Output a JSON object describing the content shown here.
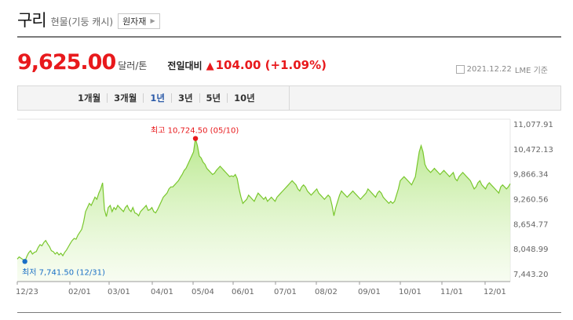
{
  "header": {
    "title": "구리",
    "subtitle": "현물(기둥 캐시)",
    "badge": "원자재"
  },
  "quote": {
    "price": "9,625.00",
    "unit": "달러/톤",
    "compare_label": "전일대비",
    "change": "104.00 (+1.09%)",
    "date": "2021.12.22",
    "source": "LME 기준"
  },
  "ranges": [
    "1개월",
    "3개월",
    "1년",
    "3년",
    "5년",
    "10년"
  ],
  "active_range": "1년",
  "colors": {
    "accent": "#e8191c",
    "active": "#2b5aa8",
    "line": "#79c72d",
    "high": "#e8191c",
    "low": "#1a6fc6"
  },
  "chart_data": {
    "type": "area",
    "x_tick_labels": [
      "12/23",
      "02/01",
      "03/01",
      "04/01",
      "05/04",
      "06/01",
      "07/01",
      "08/02",
      "09/01",
      "10/01",
      "11/01",
      "12/01"
    ],
    "y_tick_labels": [
      "11,077.91",
      "10,472.13",
      "9,866.34",
      "9,260.56",
      "8,654.77",
      "8,048.99",
      "7,443.20"
    ],
    "ylim": [
      7443.2,
      11077.91
    ],
    "high": {
      "label": "최고",
      "value": "10,724.50",
      "date": "(05/10)",
      "index": 94
    },
    "low": {
      "label": "최저",
      "value": "7,741.50",
      "date": "(12/31)",
      "index": 4
    },
    "values": [
      7800,
      7850,
      7820,
      7790,
      7741.5,
      7860,
      7950,
      8000,
      7920,
      7960,
      7980,
      8080,
      8150,
      8120,
      8200,
      8250,
      8170,
      8100,
      8000,
      7980,
      7920,
      7960,
      7900,
      7940,
      7880,
      7960,
      8020,
      8100,
      8180,
      8250,
      8300,
      8280,
      8380,
      8450,
      8520,
      8700,
      8950,
      9050,
      9150,
      9100,
      9200,
      9300,
      9250,
      9400,
      9500,
      9650,
      9000,
      8830,
      9050,
      9100,
      8950,
      9050,
      9000,
      9100,
      9050,
      9000,
      8950,
      9050,
      9100,
      9000,
      8950,
      9050,
      8920,
      8900,
      8850,
      8950,
      9000,
      9050,
      9100,
      8980,
      9000,
      9050,
      8950,
      8920,
      9000,
      9100,
      9200,
      9300,
      9350,
      9400,
      9500,
      9550,
      9550,
      9600,
      9650,
      9700,
      9780,
      9850,
      9950,
      10000,
      10100,
      10200,
      10300,
      10400,
      10724.5,
      10550,
      10300,
      10250,
      10150,
      10100,
      10000,
      9950,
      9900,
      9850,
      9880,
      9950,
      10000,
      10050,
      10000,
      9950,
      9900,
      9850,
      9800,
      9820,
      9800,
      9850,
      9750,
      9500,
      9300,
      9150,
      9200,
      9250,
      9350,
      9300,
      9250,
      9200,
      9300,
      9400,
      9350,
      9300,
      9250,
      9300,
      9200,
      9250,
      9300,
      9250,
      9200,
      9300,
      9350,
      9400,
      9450,
      9500,
      9550,
      9600,
      9650,
      9700,
      9650,
      9600,
      9500,
      9450,
      9550,
      9600,
      9550,
      9450,
      9400,
      9350,
      9400,
      9450,
      9500,
      9400,
      9350,
      9300,
      9250,
      9300,
      9350,
      9300,
      9100,
      8850,
      9050,
      9200,
      9350,
      9450,
      9400,
      9350,
      9300,
      9350,
      9400,
      9450,
      9400,
      9350,
      9300,
      9250,
      9300,
      9350,
      9400,
      9500,
      9450,
      9400,
      9350,
      9300,
      9400,
      9450,
      9400,
      9300,
      9250,
      9200,
      9150,
      9200,
      9150,
      9200,
      9350,
      9500,
      9700,
      9750,
      9800,
      9750,
      9700,
      9650,
      9600,
      9700,
      9800,
      10100,
      10400,
      10550,
      10400,
      10100,
      10000,
      9950,
      9900,
      9950,
      10000,
      9950,
      9900,
      9850,
      9900,
      9950,
      9900,
      9850,
      9800,
      9850,
      9900,
      9750,
      9700,
      9800,
      9850,
      9900,
      9850,
      9800,
      9750,
      9700,
      9600,
      9500,
      9550,
      9650,
      9700,
      9600,
      9550,
      9500,
      9600,
      9650,
      9600,
      9550,
      9500,
      9450,
      9400,
      9550,
      9600,
      9550,
      9500,
      9550,
      9625
    ]
  }
}
